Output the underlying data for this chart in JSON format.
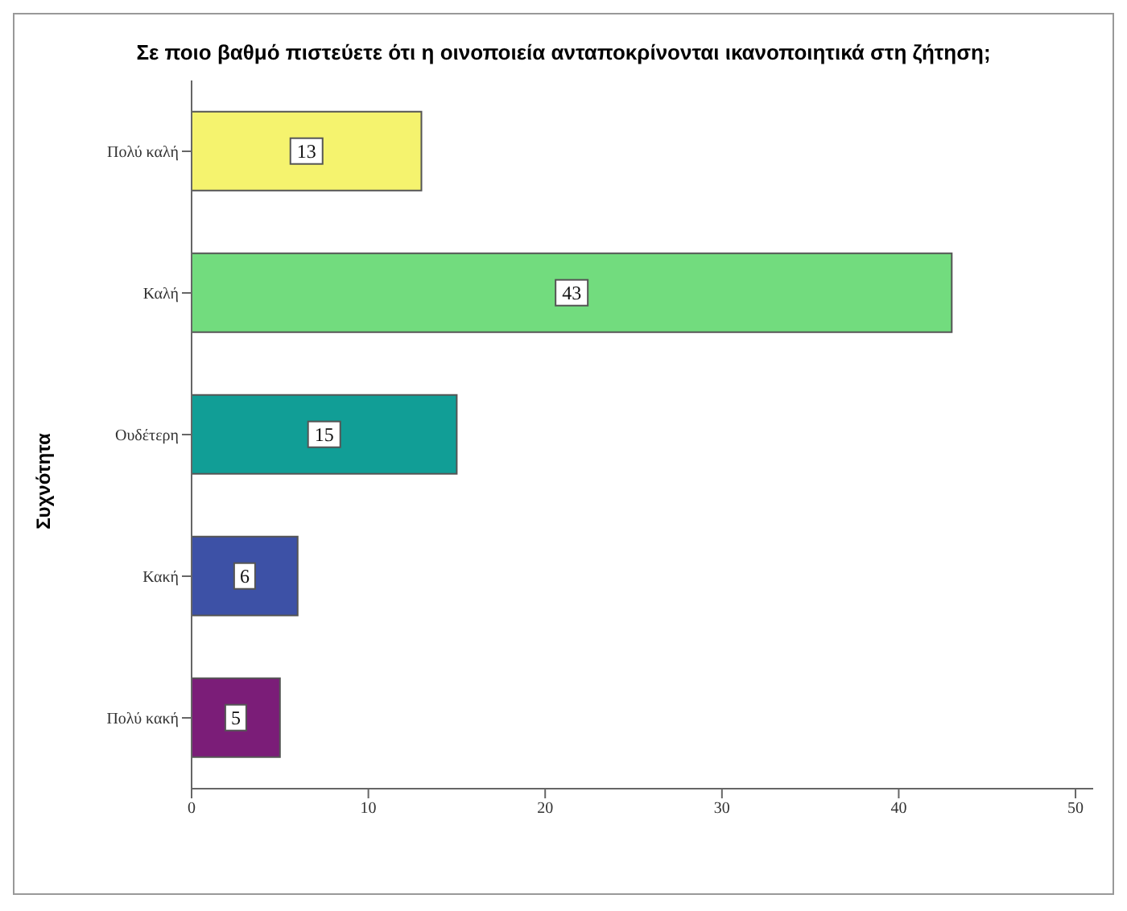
{
  "chart_data": {
    "type": "bar",
    "orientation": "horizontal",
    "title": "Σε ποιο βαθμό πιστεύετε ότι η οινοποιεία ανταποκρίνονται ικανοποιητικά στη ζήτηση;",
    "ylabel": "Συχνότητα",
    "categories": [
      "Πολύ καλή",
      "Καλή",
      "Ουδέτερη",
      "Κακή",
      "Πολύ κακή"
    ],
    "values": [
      13,
      43,
      15,
      6,
      5
    ],
    "colors": [
      "#f5f36e",
      "#72dc7e",
      "#119e96",
      "#3d51a6",
      "#7b1d78"
    ],
    "xlim": [
      0,
      51
    ],
    "xticks": [
      0,
      10,
      20,
      30,
      40,
      50
    ],
    "data_labels": true
  }
}
